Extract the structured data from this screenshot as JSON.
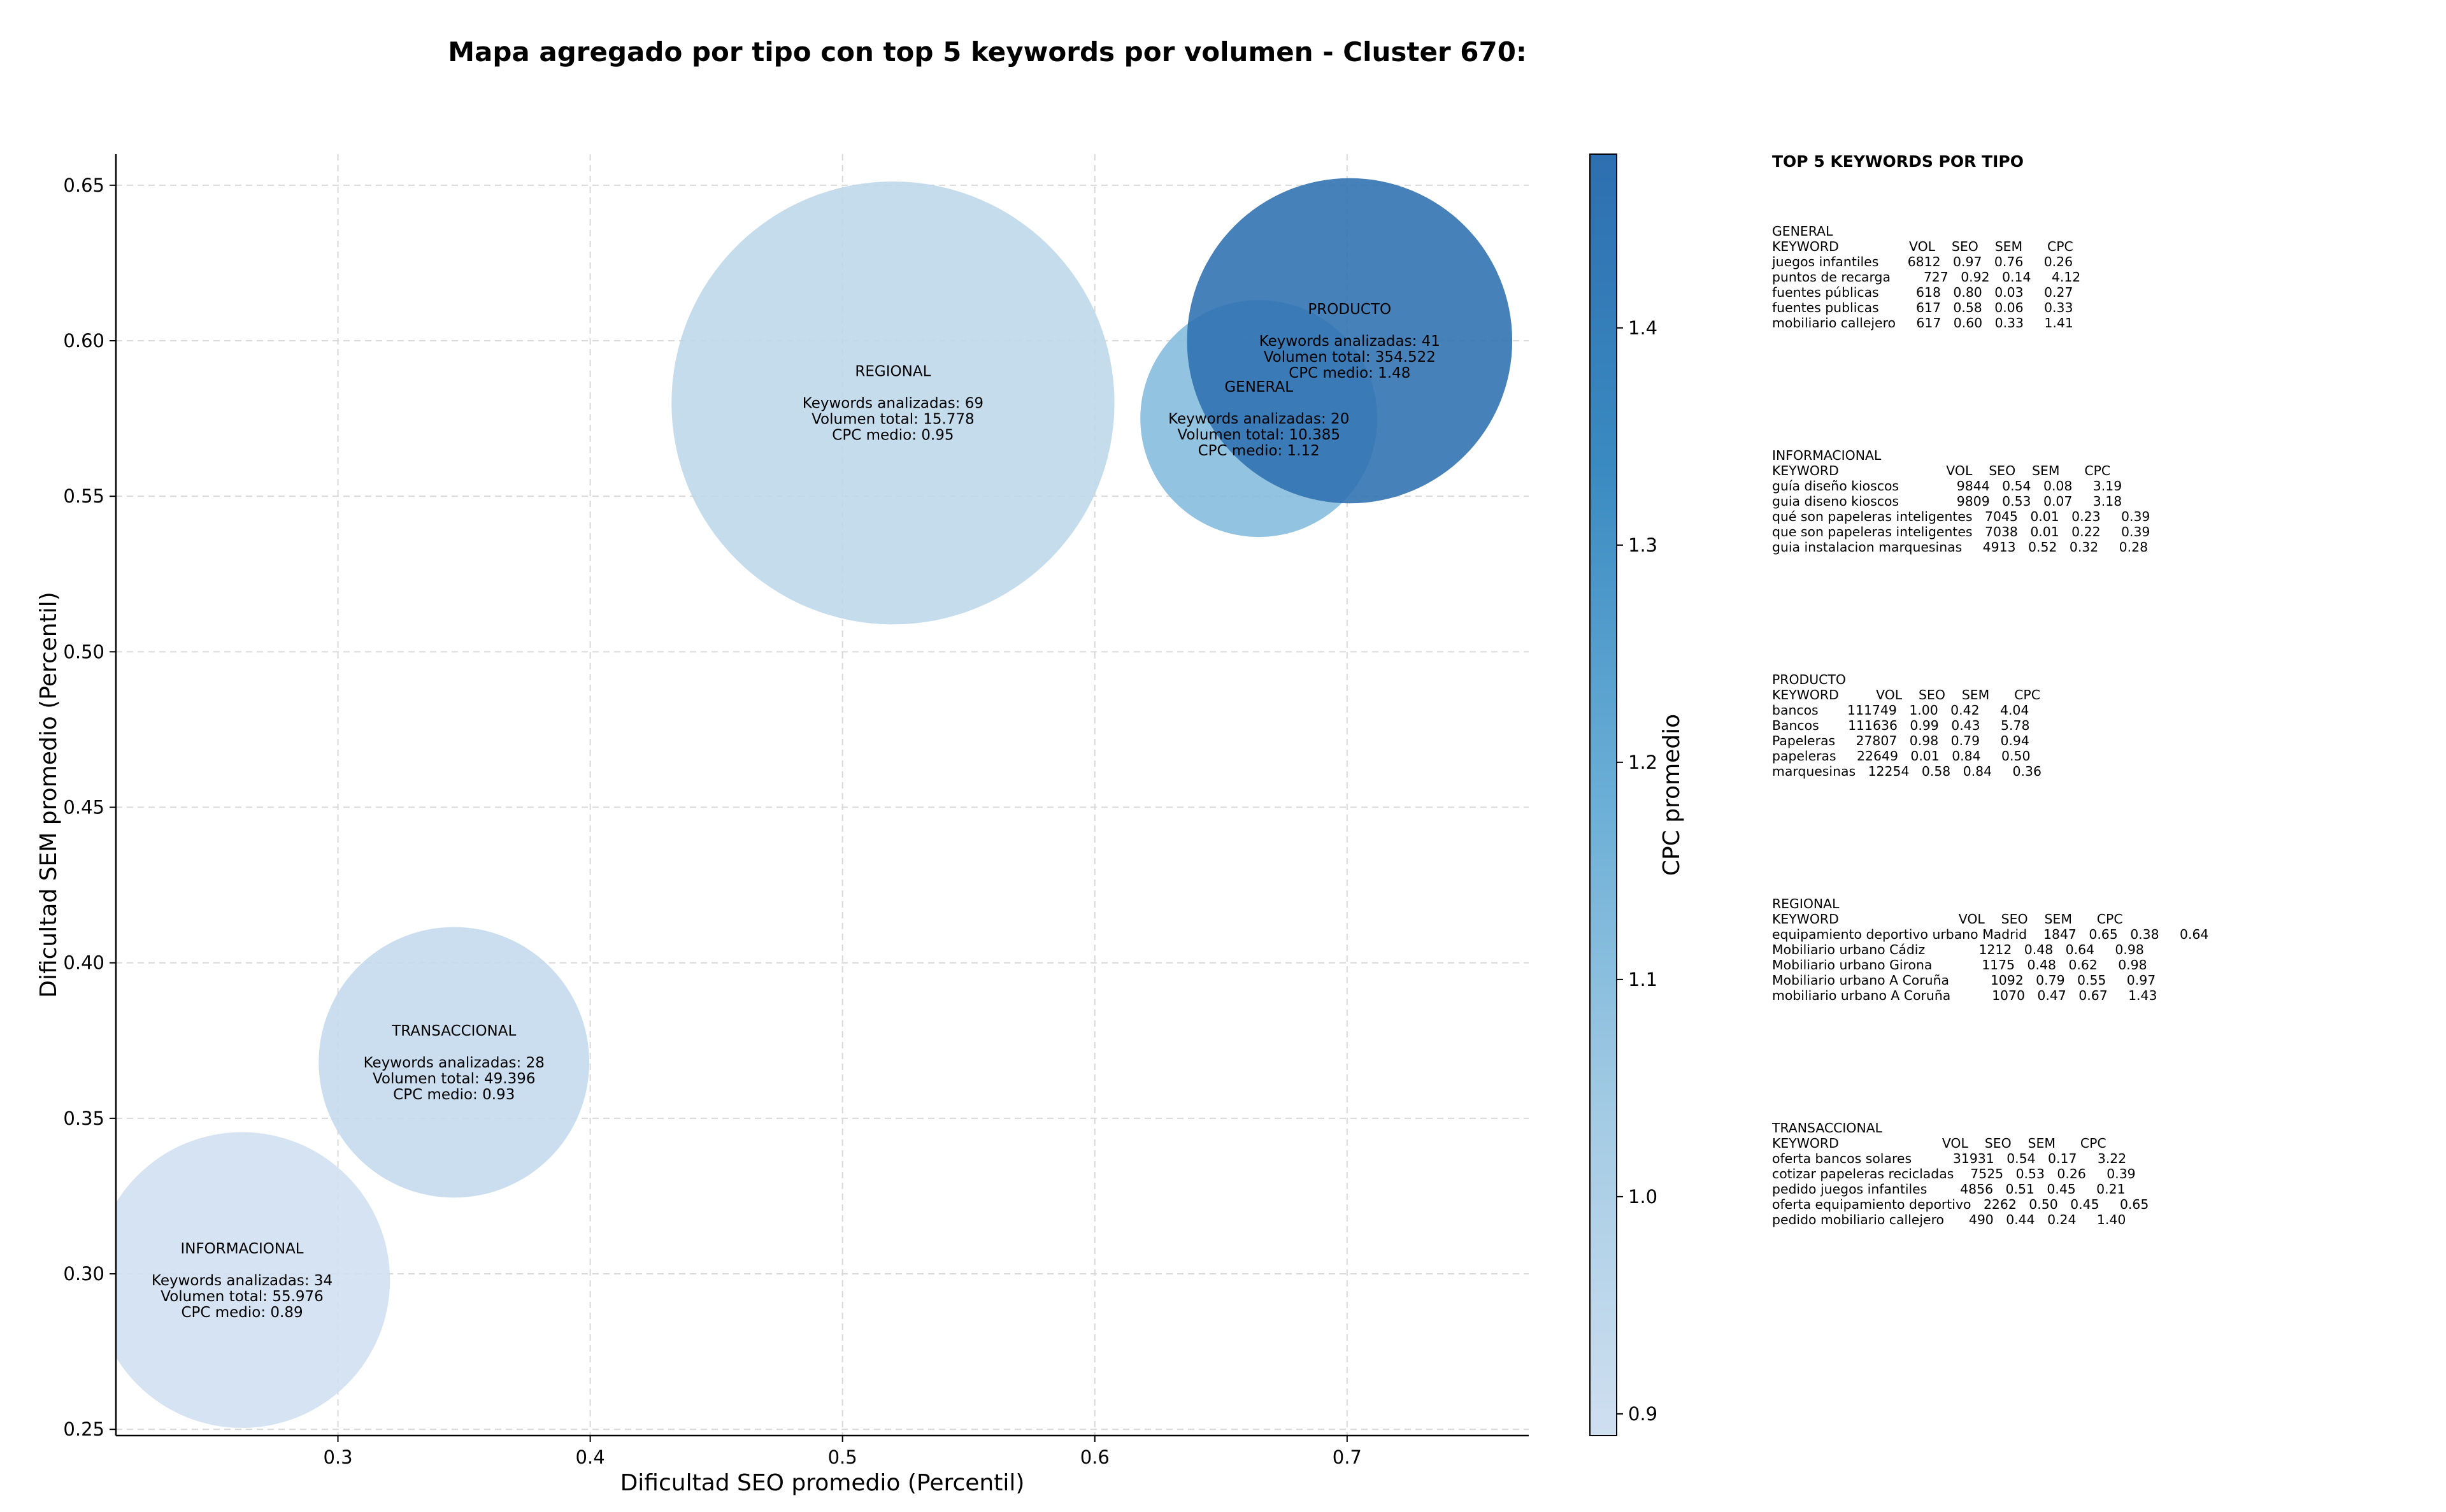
{
  "chart_data": {
    "type": "scatter",
    "title": "Mapa agregado por tipo con top 5 keywords por volumen - Cluster 670:",
    "xlabel": "Dificultad SEO promedio (Percentil)",
    "ylabel": "Dificultad SEM promedio (Percentil)",
    "xlim": [
      0.212,
      0.772
    ],
    "ylim": [
      0.248,
      0.66
    ],
    "xticks": [
      0.3,
      0.4,
      0.5,
      0.6,
      0.7
    ],
    "yticks": [
      0.25,
      0.3,
      0.35,
      0.4,
      0.45,
      0.5,
      0.55,
      0.6,
      0.65
    ],
    "xtick_labels": [
      "0.3",
      "0.4",
      "0.5",
      "0.6",
      "0.7"
    ],
    "ytick_labels": [
      "0.25",
      "0.30",
      "0.35",
      "0.40",
      "0.45",
      "0.50",
      "0.55",
      "0.60",
      "0.65"
    ],
    "grid": true,
    "colorbar": {
      "label": "CPC promedio",
      "range": [
        0.89,
        1.48
      ],
      "ticks": [
        0.9,
        1.0,
        1.1,
        1.2,
        1.3,
        1.4
      ],
      "tick_labels": [
        "0.9",
        "1.0",
        "1.1",
        "1.2",
        "1.3",
        "1.4"
      ],
      "colors": [
        "#cfdff0",
        "#a3cbe4",
        "#6aaed6",
        "#3b8bc2",
        "#2d6fb0"
      ]
    },
    "points": [
      {
        "name": "INFORMACIONAL",
        "x": 0.262,
        "y": 0.298,
        "keywords": 34,
        "volumen": "55.976",
        "cpc": 0.89,
        "lines": [
          "INFORMACIONAL",
          "",
          "Keywords analizadas: 34",
          "Volumen total: 55.976",
          "CPC medio: 0.89"
        ]
      },
      {
        "name": "TRANSACCIONAL",
        "x": 0.346,
        "y": 0.368,
        "keywords": 28,
        "volumen": "49.396",
        "cpc": 0.93,
        "lines": [
          "TRANSACCIONAL",
          "",
          "Keywords analizadas: 28",
          "Volumen total: 49.396",
          "CPC medio: 0.93"
        ]
      },
      {
        "name": "REGIONAL",
        "x": 0.52,
        "y": 0.58,
        "keywords": 69,
        "volumen": "15.778",
        "cpc": 0.95,
        "lines": [
          "REGIONAL",
          "",
          "Keywords analizadas: 69",
          "Volumen total: 15.778",
          "CPC medio: 0.95"
        ]
      },
      {
        "name": "GENERAL",
        "x": 0.665,
        "y": 0.575,
        "keywords": 20,
        "volumen": "10.385",
        "cpc": 1.12,
        "lines": [
          "GENERAL",
          "",
          "Keywords analizadas: 20",
          "Volumen total: 10.385",
          "CPC medio: 1.12"
        ]
      },
      {
        "name": "PRODUCTO",
        "x": 0.701,
        "y": 0.6,
        "keywords": 41,
        "volumen": "354.522",
        "cpc": 1.48,
        "lines": [
          "PRODUCTO",
          "",
          "Keywords analizadas: 41",
          "Volumen total: 354.522",
          "CPC medio: 1.48"
        ]
      }
    ]
  },
  "side_panel": {
    "heading": "TOP 5 KEYWORDS POR TIPO",
    "blocks": [
      {
        "lines": [
          "GENERAL",
          "KEYWORD                 VOL    SEO    SEM      CPC",
          "juegos infantiles       6812   0.97   0.76     0.26",
          "puntos de recarga        727   0.92   0.14     4.12",
          "fuentes públicas         618   0.80   0.03     0.27",
          "fuentes publicas         617   0.58   0.06     0.33",
          "mobiliario callejero     617   0.60   0.33     1.41"
        ]
      },
      {
        "lines": [
          "INFORMACIONAL",
          "KEYWORD                          VOL    SEO    SEM      CPC",
          "guía diseño kioscos              9844   0.54   0.08     3.19",
          "guia diseno kioscos              9809   0.53   0.07     3.18",
          "qué son papeleras inteligentes   7045   0.01   0.23     0.39",
          "que son papeleras inteligentes   7038   0.01   0.22     0.39",
          "guia instalacion marquesinas     4913   0.52   0.32     0.28"
        ]
      },
      {
        "lines": [
          "PRODUCTO",
          "KEYWORD         VOL    SEO    SEM      CPC",
          "bancos       111749   1.00   0.42     4.04",
          "Bancos       111636   0.99   0.43     5.78",
          "Papeleras     27807   0.98   0.79     0.94",
          "papeleras     22649   0.01   0.84     0.50",
          "marquesinas   12254   0.58   0.84     0.36"
        ]
      },
      {
        "lines": [
          "REGIONAL",
          "KEYWORD                             VOL    SEO    SEM      CPC",
          "equipamiento deportivo urbano Madrid    1847   0.65   0.38     0.64",
          "Mobiliario urbano Cádiz             1212   0.48   0.64     0.98",
          "Mobiliario urbano Girona            1175   0.48   0.62     0.98",
          "Mobiliario urbano A Coruña          1092   0.79   0.55     0.97",
          "mobiliario urbano A Coruña          1070   0.47   0.67     1.43"
        ]
      },
      {
        "lines": [
          "TRANSACCIONAL",
          "KEYWORD                         VOL    SEO    SEM      CPC",
          "oferta bancos solares          31931   0.54   0.17     3.22",
          "cotizar papeleras recicladas    7525   0.53   0.26     0.39",
          "pedido juegos infantiles        4856   0.51   0.45     0.21",
          "oferta equipamiento deportivo   2262   0.50   0.45     0.65",
          "pedido mobiliario callejero      490   0.44   0.24     1.40"
        ]
      }
    ]
  }
}
